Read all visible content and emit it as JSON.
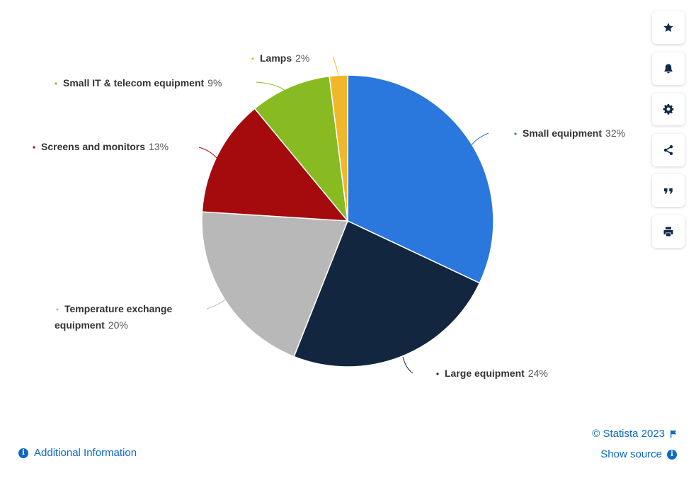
{
  "chart_data": {
    "type": "pie",
    "categories": [
      "Small equipment",
      "Large equipment",
      "Temperature exchange equipment",
      "Screens and monitors",
      "Small IT & telecom equipment",
      "Lamps"
    ],
    "values": [
      32,
      24,
      20,
      13,
      9,
      2
    ],
    "value_labels": [
      "32%",
      "24%",
      "20%",
      "13%",
      "9%",
      "2%"
    ],
    "label_lines": [
      [
        "Small equipment"
      ],
      [
        "Large equipment"
      ],
      [
        "Temperature exchange",
        "equipment"
      ],
      [
        "Screens and monitors"
      ],
      [
        "Small IT & telecom equipment"
      ],
      [
        "Lamps"
      ]
    ],
    "colors": [
      "#2a77dd",
      "#12263f",
      "#b8b8b8",
      "#a50a0d",
      "#88bb22",
      "#f0b72a"
    ]
  },
  "toolbar": {
    "icons": [
      "star-icon",
      "bell-icon",
      "gear-icon",
      "share-icon",
      "quote-icon",
      "print-icon"
    ]
  },
  "footer": {
    "additional_info": "Additional Information",
    "credit": "© Statista 2023",
    "show_source": "Show source"
  }
}
